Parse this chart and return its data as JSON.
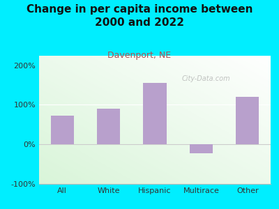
{
  "title": "Change in per capita income between\n2000 and 2022",
  "subtitle": "Davenport, NE",
  "categories": [
    "All",
    "White",
    "Hispanic",
    "Multirace",
    "Other"
  ],
  "values": [
    72,
    90,
    155,
    -22,
    120
  ],
  "bar_color": "#b8a0cc",
  "title_fontsize": 11,
  "subtitle_fontsize": 9,
  "subtitle_color": "#b05050",
  "title_color": "#111111",
  "background_outer": "#00eeff",
  "ylim": [
    -100,
    225
  ],
  "yticks": [
    -100,
    0,
    100,
    200
  ],
  "ytick_labels": [
    "-100%",
    "0%",
    "100%",
    "200%"
  ],
  "watermark": "City-Data.com",
  "tick_fontsize": 8
}
